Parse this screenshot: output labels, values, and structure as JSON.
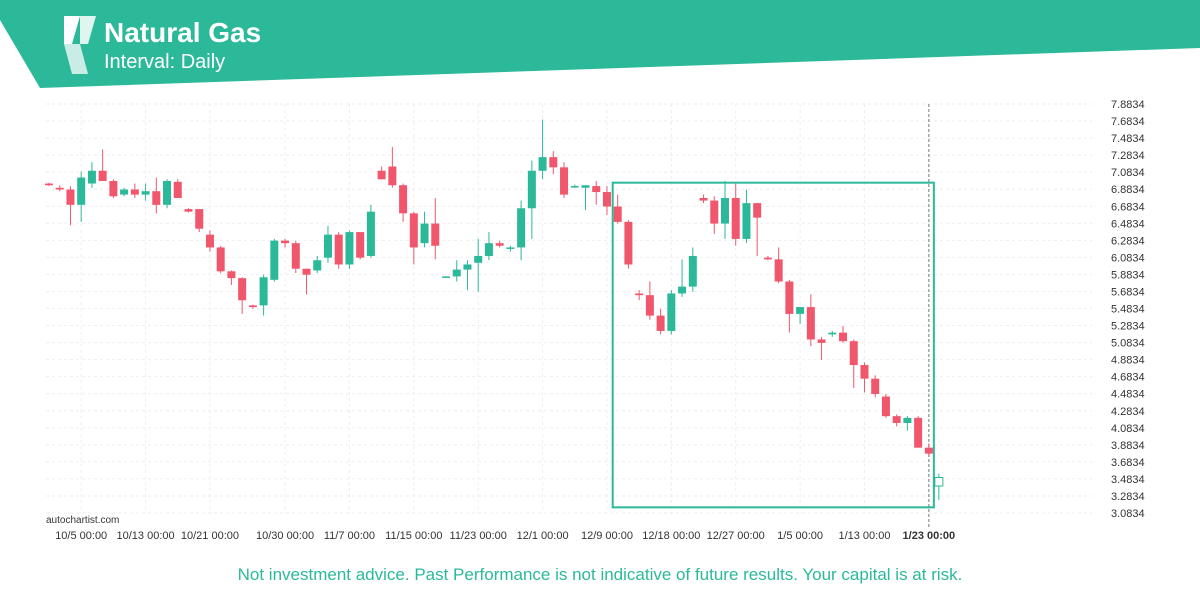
{
  "header": {
    "title": "Natural Gas",
    "subtitle": "Interval: Daily",
    "logo_icon": "autochartist-logo-icon",
    "banner_color": "#2bb99a"
  },
  "watermark": "autochartist.com",
  "disclaimer": "Not investment advice. Past Performance is not indicative of future results. Your capital is at risk.",
  "colors": {
    "up": "#2bb99a",
    "down": "#f0566c",
    "highlight": "#2bb99a",
    "grid": "#eeeeee",
    "axis_text": "#333333"
  },
  "chart_data": {
    "type": "candlestick",
    "instrument": "Natural Gas",
    "interval": "Daily",
    "ylim": [
      3.0834,
      7.8834
    ],
    "y_ticks": [
      "7.8834",
      "7.6834",
      "7.4834",
      "7.2834",
      "7.0834",
      "6.8834",
      "6.6834",
      "6.4834",
      "6.2834",
      "6.0834",
      "5.8834",
      "5.6834",
      "5.4834",
      "5.2834",
      "5.0834",
      "4.8834",
      "4.6834",
      "4.4834",
      "4.2834",
      "4.0834",
      "3.8834",
      "3.6834",
      "3.4834",
      "3.2834",
      "3.0834"
    ],
    "x_ticks": [
      {
        "label": "10/5 00:00",
        "index": 3
      },
      {
        "label": "10/13 00:00",
        "index": 9
      },
      {
        "label": "10/21 00:00",
        "index": 15
      },
      {
        "label": "10/30 00:00",
        "index": 22
      },
      {
        "label": "11/7 00:00",
        "index": 28
      },
      {
        "label": "11/15 00:00",
        "index": 34
      },
      {
        "label": "11/23 00:00",
        "index": 40
      },
      {
        "label": "12/1 00:00",
        "index": 46
      },
      {
        "label": "12/9 00:00",
        "index": 52
      },
      {
        "label": "12/18 00:00",
        "index": 58
      },
      {
        "label": "12/27 00:00",
        "index": 64
      },
      {
        "label": "1/5 00:00",
        "index": 70
      },
      {
        "label": "1/13 00:00",
        "index": 76
      },
      {
        "label": "1/23 00:00",
        "index": 82,
        "bold": true
      }
    ],
    "current_index": 82,
    "highlight_box": {
      "start_index": 53,
      "end_index": 82,
      "high": 6.96,
      "low": 3.15
    },
    "candles": [
      {
        "o": 6.95,
        "h": 6.96,
        "l": 6.92,
        "c": 6.93
      },
      {
        "o": 6.9,
        "h": 6.93,
        "l": 6.86,
        "c": 6.88
      },
      {
        "o": 6.88,
        "h": 6.92,
        "l": 6.46,
        "c": 6.7
      },
      {
        "o": 6.7,
        "h": 7.09,
        "l": 6.5,
        "c": 7.02
      },
      {
        "o": 6.95,
        "h": 7.2,
        "l": 6.9,
        "c": 7.1
      },
      {
        "o": 7.1,
        "h": 7.35,
        "l": 7.0,
        "c": 6.98
      },
      {
        "o": 6.98,
        "h": 7.0,
        "l": 6.78,
        "c": 6.8
      },
      {
        "o": 6.82,
        "h": 6.9,
        "l": 6.8,
        "c": 6.88
      },
      {
        "o": 6.88,
        "h": 6.95,
        "l": 6.78,
        "c": 6.82
      },
      {
        "o": 6.82,
        "h": 6.95,
        "l": 6.75,
        "c": 6.86
      },
      {
        "o": 6.86,
        "h": 7.02,
        "l": 6.6,
        "c": 6.7
      },
      {
        "o": 6.7,
        "h": 7.0,
        "l": 6.66,
        "c": 6.98
      },
      {
        "o": 6.97,
        "h": 7.0,
        "l": 6.78,
        "c": 6.78
      },
      {
        "o": 6.65,
        "h": 6.66,
        "l": 6.61,
        "c": 6.62
      },
      {
        "o": 6.65,
        "h": 6.65,
        "l": 6.38,
        "c": 6.42
      },
      {
        "o": 6.35,
        "h": 6.4,
        "l": 6.15,
        "c": 6.2
      },
      {
        "o": 6.2,
        "h": 6.22,
        "l": 5.9,
        "c": 5.92
      },
      {
        "o": 5.92,
        "h": 5.93,
        "l": 5.76,
        "c": 5.84
      },
      {
        "o": 5.84,
        "h": 5.85,
        "l": 5.42,
        "c": 5.58
      },
      {
        "o": 5.52,
        "h": 5.53,
        "l": 5.48,
        "c": 5.5
      },
      {
        "o": 5.52,
        "h": 5.88,
        "l": 5.4,
        "c": 5.85
      },
      {
        "o": 5.82,
        "h": 6.3,
        "l": 5.8,
        "c": 6.28
      },
      {
        "o": 6.28,
        "h": 6.3,
        "l": 6.2,
        "c": 6.25
      },
      {
        "o": 6.25,
        "h": 6.28,
        "l": 5.9,
        "c": 5.95
      },
      {
        "o": 5.95,
        "h": 5.95,
        "l": 5.65,
        "c": 5.88
      },
      {
        "o": 5.93,
        "h": 6.1,
        "l": 5.9,
        "c": 6.05
      },
      {
        "o": 6.08,
        "h": 6.45,
        "l": 6.02,
        "c": 6.35
      },
      {
        "o": 6.35,
        "h": 6.38,
        "l": 5.95,
        "c": 6.0
      },
      {
        "o": 6.0,
        "h": 6.4,
        "l": 5.95,
        "c": 6.38
      },
      {
        "o": 6.38,
        "h": 6.36,
        "l": 6.06,
        "c": 6.08
      },
      {
        "o": 6.1,
        "h": 6.7,
        "l": 6.08,
        "c": 6.62
      },
      {
        "o": 7.1,
        "h": 7.15,
        "l": 7.0,
        "c": 7.0
      },
      {
        "o": 7.15,
        "h": 7.38,
        "l": 6.9,
        "c": 6.93
      },
      {
        "o": 6.93,
        "h": 6.95,
        "l": 6.5,
        "c": 6.6
      },
      {
        "o": 6.6,
        "h": 6.62,
        "l": 6.0,
        "c": 6.2
      },
      {
        "o": 6.25,
        "h": 6.62,
        "l": 6.2,
        "c": 6.48
      },
      {
        "o": 6.48,
        "h": 6.78,
        "l": 6.06,
        "c": 6.22
      },
      {
        "o": 5.85,
        "h": 5.86,
        "l": 5.84,
        "c": 5.86
      },
      {
        "o": 5.86,
        "h": 6.05,
        "l": 5.8,
        "c": 5.94
      },
      {
        "o": 5.94,
        "h": 6.05,
        "l": 5.7,
        "c": 6.0
      },
      {
        "o": 6.02,
        "h": 6.3,
        "l": 5.68,
        "c": 6.1
      },
      {
        "o": 6.1,
        "h": 6.38,
        "l": 6.05,
        "c": 6.25
      },
      {
        "o": 6.25,
        "h": 6.28,
        "l": 6.2,
        "c": 6.22
      },
      {
        "o": 6.2,
        "h": 6.22,
        "l": 6.15,
        "c": 6.2
      },
      {
        "o": 6.2,
        "h": 6.75,
        "l": 6.05,
        "c": 6.66
      },
      {
        "o": 6.66,
        "h": 7.22,
        "l": 6.3,
        "c": 7.1
      },
      {
        "o": 7.1,
        "h": 7.7,
        "l": 7.0,
        "c": 7.26
      },
      {
        "o": 7.26,
        "h": 7.33,
        "l": 7.06,
        "c": 7.14
      },
      {
        "o": 7.14,
        "h": 7.2,
        "l": 6.78,
        "c": 6.82
      },
      {
        "o": 6.92,
        "h": 6.94,
        "l": 6.9,
        "c": 6.92
      },
      {
        "o": 6.9,
        "h": 6.93,
        "l": 6.64,
        "c": 6.93
      },
      {
        "o": 6.92,
        "h": 6.98,
        "l": 6.7,
        "c": 6.85
      },
      {
        "o": 6.85,
        "h": 6.92,
        "l": 6.58,
        "c": 6.68
      },
      {
        "o": 6.68,
        "h": 6.82,
        "l": 6.48,
        "c": 6.5
      },
      {
        "o": 6.5,
        "h": 6.52,
        "l": 5.95,
        "c": 6.0
      },
      {
        "o": 5.66,
        "h": 5.7,
        "l": 5.58,
        "c": 5.64
      },
      {
        "o": 5.64,
        "h": 5.8,
        "l": 5.35,
        "c": 5.4
      },
      {
        "o": 5.4,
        "h": 5.48,
        "l": 5.18,
        "c": 5.22
      },
      {
        "o": 5.22,
        "h": 5.7,
        "l": 5.18,
        "c": 5.66
      },
      {
        "o": 5.66,
        "h": 6.06,
        "l": 5.62,
        "c": 5.74
      },
      {
        "o": 5.74,
        "h": 6.2,
        "l": 5.68,
        "c": 6.1
      },
      {
        "o": 6.78,
        "h": 6.82,
        "l": 6.72,
        "c": 6.75
      },
      {
        "o": 6.75,
        "h": 6.8,
        "l": 6.36,
        "c": 6.48
      },
      {
        "o": 6.48,
        "h": 6.98,
        "l": 6.3,
        "c": 6.78
      },
      {
        "o": 6.78,
        "h": 6.95,
        "l": 6.22,
        "c": 6.3
      },
      {
        "o": 6.3,
        "h": 6.88,
        "l": 6.25,
        "c": 6.72
      },
      {
        "o": 6.72,
        "h": 6.72,
        "l": 6.1,
        "c": 6.55
      },
      {
        "o": 6.08,
        "h": 6.1,
        "l": 6.05,
        "c": 6.06
      },
      {
        "o": 6.06,
        "h": 6.2,
        "l": 5.78,
        "c": 5.8
      },
      {
        "o": 5.8,
        "h": 5.82,
        "l": 5.2,
        "c": 5.42
      },
      {
        "o": 5.42,
        "h": 5.5,
        "l": 5.3,
        "c": 5.5
      },
      {
        "o": 5.5,
        "h": 5.65,
        "l": 5.04,
        "c": 5.12
      },
      {
        "o": 5.12,
        "h": 5.15,
        "l": 4.88,
        "c": 5.08
      },
      {
        "o": 5.18,
        "h": 5.22,
        "l": 5.15,
        "c": 5.2
      },
      {
        "o": 5.2,
        "h": 5.28,
        "l": 5.08,
        "c": 5.1
      },
      {
        "o": 5.1,
        "h": 5.12,
        "l": 4.55,
        "c": 4.82
      },
      {
        "o": 4.82,
        "h": 4.85,
        "l": 4.5,
        "c": 4.66
      },
      {
        "o": 4.66,
        "h": 4.7,
        "l": 4.44,
        "c": 4.48
      },
      {
        "o": 4.45,
        "h": 4.48,
        "l": 4.2,
        "c": 4.22
      },
      {
        "o": 4.22,
        "h": 4.24,
        "l": 4.1,
        "c": 4.14
      },
      {
        "o": 4.14,
        "h": 4.22,
        "l": 4.05,
        "c": 4.2
      },
      {
        "o": 4.2,
        "h": 4.22,
        "l": 3.85,
        "c": 3.85
      },
      {
        "o": 3.85,
        "h": 3.9,
        "l": 3.75,
        "c": 3.78
      }
    ]
  }
}
